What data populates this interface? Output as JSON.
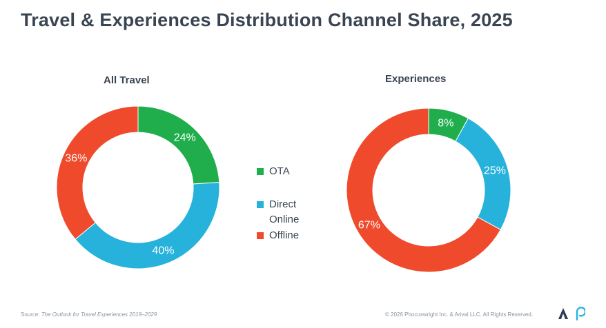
{
  "title": "Travel & Experiences Distribution Channel Share, 2025",
  "legend": [
    {
      "key": "ota",
      "label": "OTA",
      "color": "#1fae4b"
    },
    {
      "key": "direct",
      "label": "Direct Online",
      "color": "#27b2dc"
    },
    {
      "key": "offline",
      "label": "Offline",
      "color": "#ee4a2b"
    }
  ],
  "chart_data": [
    {
      "type": "donut",
      "title": "All Travel",
      "categories": [
        "OTA",
        "Direct Online",
        "Offline"
      ],
      "values": [
        24,
        40,
        36
      ],
      "labels": [
        "24%",
        "40%",
        "36%"
      ],
      "colors": [
        "#1fae4b",
        "#27b2dc",
        "#ee4a2b"
      ]
    },
    {
      "type": "donut",
      "title": "Experiences",
      "categories": [
        "OTA",
        "Direct Online",
        "Offline"
      ],
      "values": [
        8,
        25,
        67
      ],
      "labels": [
        "8%",
        "25%",
        "67%"
      ],
      "colors": [
        "#1fae4b",
        "#27b2dc",
        "#ee4a2b"
      ]
    }
  ],
  "footer": {
    "source_prefix": "Source: ",
    "source_title": "The Outlook for Travel Experiences 2019–2029",
    "copyright": "© 2026 Phocuswright Inc. & Arival LLC. All Rights Reserved."
  },
  "logos": {
    "left": "arival-logo",
    "right": "phocuswright-logo"
  }
}
